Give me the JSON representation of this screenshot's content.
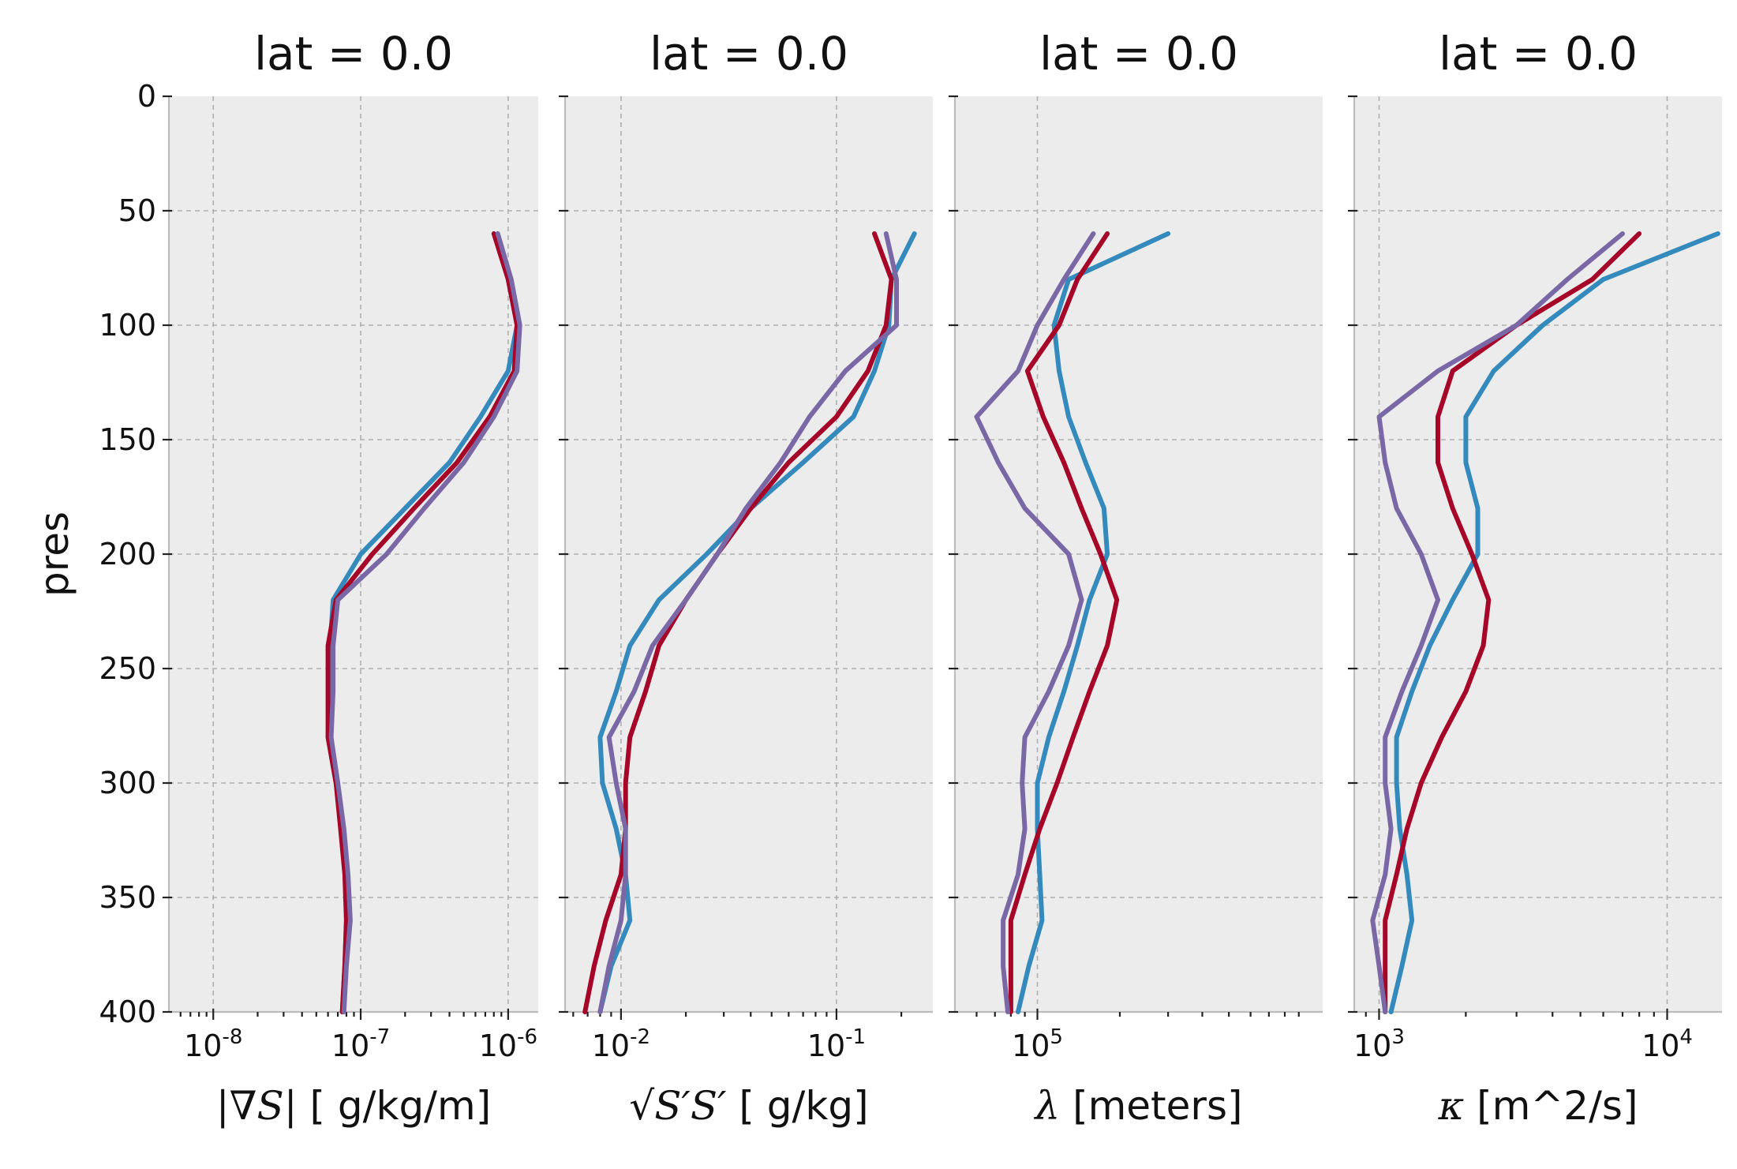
{
  "chart_data": [
    {
      "type": "line",
      "title": "lat = 0.0",
      "xlabel_math": "|∇S|",
      "xlabel_text": "[ g/kg/m]",
      "ylabel": "pres",
      "xscale": "log",
      "xlim": [
        5e-09,
        1.6e-06
      ],
      "ylim": [
        400,
        0
      ],
      "xticks": [
        {
          "base": "10",
          "exp": "-8",
          "value": 1e-08
        },
        {
          "base": "10",
          "exp": "-7",
          "value": 1e-07
        },
        {
          "base": "10",
          "exp": "-6",
          "value": 1e-06
        }
      ],
      "yticks": [
        "0",
        "50",
        "100",
        "150",
        "200",
        "250",
        "300",
        "350",
        "400"
      ],
      "grid": true,
      "series": [
        {
          "color": "#348abd",
          "points": [
            [
              8.5e-07,
              60
            ],
            [
              1e-06,
              80
            ],
            [
              1.15e-06,
              100
            ],
            [
              1e-06,
              120
            ],
            [
              6.5e-07,
              140
            ],
            [
              4e-07,
              160
            ],
            [
              2e-07,
              180
            ],
            [
              1e-07,
              200
            ],
            [
              6.5e-08,
              220
            ],
            [
              6.2e-08,
              240
            ],
            [
              6.2e-08,
              260
            ],
            [
              6e-08,
              280
            ],
            [
              6.8e-08,
              300
            ],
            [
              7.5e-08,
              320
            ],
            [
              8e-08,
              340
            ],
            [
              8e-08,
              360
            ],
            [
              7.8e-08,
              380
            ],
            [
              7.5e-08,
              400
            ]
          ]
        },
        {
          "color": "#a60628",
          "points": [
            [
              8e-07,
              60
            ],
            [
              1e-06,
              80
            ],
            [
              1.15e-06,
              100
            ],
            [
              1.1e-06,
              120
            ],
            [
              7.5e-07,
              140
            ],
            [
              4.5e-07,
              160
            ],
            [
              2.3e-07,
              180
            ],
            [
              1.2e-07,
              200
            ],
            [
              6.8e-08,
              220
            ],
            [
              6e-08,
              240
            ],
            [
              6e-08,
              260
            ],
            [
              6e-08,
              280
            ],
            [
              6.8e-08,
              300
            ],
            [
              7.3e-08,
              320
            ],
            [
              7.8e-08,
              340
            ],
            [
              8e-08,
              360
            ],
            [
              7.8e-08,
              380
            ],
            [
              7.5e-08,
              400
            ]
          ]
        },
        {
          "color": "#7a68a6",
          "points": [
            [
              8.5e-07,
              60
            ],
            [
              1.05e-06,
              80
            ],
            [
              1.2e-06,
              100
            ],
            [
              1.15e-06,
              120
            ],
            [
              8e-07,
              140
            ],
            [
              5e-07,
              160
            ],
            [
              2.7e-07,
              180
            ],
            [
              1.5e-07,
              200
            ],
            [
              7e-08,
              220
            ],
            [
              6.5e-08,
              240
            ],
            [
              6.5e-08,
              260
            ],
            [
              6.3e-08,
              280
            ],
            [
              7e-08,
              300
            ],
            [
              7.7e-08,
              320
            ],
            [
              8.2e-08,
              340
            ],
            [
              8.5e-08,
              360
            ],
            [
              8e-08,
              380
            ],
            [
              7.7e-08,
              400
            ]
          ]
        }
      ]
    },
    {
      "type": "line",
      "title": "lat = 0.0",
      "xlabel_math": "√S′S′",
      "xlabel_text": "[ g/kg]",
      "xscale": "log",
      "xlim": [
        0.0055,
        0.28
      ],
      "ylim": [
        400,
        0
      ],
      "xticks": [
        {
          "base": "10",
          "exp": "-2",
          "value": 0.01
        },
        {
          "base": "10",
          "exp": "-1",
          "value": 0.1
        }
      ],
      "grid": true,
      "series": [
        {
          "color": "#348abd",
          "points": [
            [
              0.23,
              60
            ],
            [
              0.18,
              80
            ],
            [
              0.175,
              100
            ],
            [
              0.15,
              120
            ],
            [
              0.12,
              140
            ],
            [
              0.07,
              160
            ],
            [
              0.04,
              180
            ],
            [
              0.025,
              200
            ],
            [
              0.015,
              220
            ],
            [
              0.011,
              240
            ],
            [
              0.0095,
              260
            ],
            [
              0.008,
              280
            ],
            [
              0.0082,
              300
            ],
            [
              0.0095,
              320
            ],
            [
              0.0105,
              340
            ],
            [
              0.011,
              360
            ],
            [
              0.009,
              380
            ],
            [
              0.008,
              400
            ]
          ]
        },
        {
          "color": "#a60628",
          "points": [
            [
              0.15,
              60
            ],
            [
              0.18,
              80
            ],
            [
              0.17,
              100
            ],
            [
              0.14,
              120
            ],
            [
              0.1,
              140
            ],
            [
              0.06,
              160
            ],
            [
              0.04,
              180
            ],
            [
              0.028,
              200
            ],
            [
              0.02,
              220
            ],
            [
              0.015,
              240
            ],
            [
              0.013,
              260
            ],
            [
              0.011,
              280
            ],
            [
              0.0105,
              300
            ],
            [
              0.0105,
              320
            ],
            [
              0.01,
              340
            ],
            [
              0.0085,
              360
            ],
            [
              0.0075,
              380
            ],
            [
              0.0068,
              400
            ]
          ]
        },
        {
          "color": "#7a68a6",
          "points": [
            [
              0.17,
              60
            ],
            [
              0.19,
              80
            ],
            [
              0.19,
              100
            ],
            [
              0.11,
              120
            ],
            [
              0.075,
              140
            ],
            [
              0.055,
              160
            ],
            [
              0.038,
              180
            ],
            [
              0.028,
              200
            ],
            [
              0.02,
              220
            ],
            [
              0.014,
              240
            ],
            [
              0.0115,
              260
            ],
            [
              0.0088,
              280
            ],
            [
              0.0095,
              300
            ],
            [
              0.0105,
              320
            ],
            [
              0.0105,
              340
            ],
            [
              0.01,
              360
            ],
            [
              0.0088,
              380
            ],
            [
              0.008,
              400
            ]
          ]
        }
      ]
    },
    {
      "type": "line",
      "title": "lat = 0.0",
      "xlabel_math": "λ",
      "xlabel_text": "[meters]",
      "xscale": "log",
      "xlim": [
        50000,
        1100000
      ],
      "ylim": [
        400,
        0
      ],
      "xticks": [
        {
          "base": "10",
          "exp": "5",
          "value": 100000
        }
      ],
      "grid": true,
      "series": [
        {
          "color": "#348abd",
          "points": [
            [
              300000,
              60
            ],
            [
              130000,
              80
            ],
            [
              115000,
              100
            ],
            [
              120000,
              120
            ],
            [
              130000,
              140
            ],
            [
              150000,
              160
            ],
            [
              175000,
              180
            ],
            [
              180000,
              200
            ],
            [
              155000,
              220
            ],
            [
              140000,
              240
            ],
            [
              125000,
              260
            ],
            [
              110000,
              280
            ],
            [
              100000,
              300
            ],
            [
              100000,
              320
            ],
            [
              102000,
              340
            ],
            [
              104000,
              360
            ],
            [
              93000,
              380
            ],
            [
              85000,
              400
            ]
          ]
        },
        {
          "color": "#a60628",
          "points": [
            [
              180000,
              60
            ],
            [
              140000,
              80
            ],
            [
              120000,
              100
            ],
            [
              92000,
              120
            ],
            [
              105000,
              140
            ],
            [
              125000,
              160
            ],
            [
              145000,
              180
            ],
            [
              170000,
              200
            ],
            [
              195000,
              220
            ],
            [
              180000,
              240
            ],
            [
              155000,
              260
            ],
            [
              135000,
              280
            ],
            [
              118000,
              300
            ],
            [
              102000,
              320
            ],
            [
              90000,
              340
            ],
            [
              80000,
              360
            ],
            [
              80000,
              380
            ],
            [
              80000,
              400
            ]
          ]
        },
        {
          "color": "#7a68a6",
          "points": [
            [
              160000,
              60
            ],
            [
              125000,
              80
            ],
            [
              100000,
              100
            ],
            [
              85000,
              120
            ],
            [
              60000,
              140
            ],
            [
              72000,
              160
            ],
            [
              90000,
              180
            ],
            [
              130000,
              200
            ],
            [
              145000,
              220
            ],
            [
              130000,
              240
            ],
            [
              110000,
              260
            ],
            [
              90000,
              280
            ],
            [
              88000,
              300
            ],
            [
              90000,
              320
            ],
            [
              85000,
              340
            ],
            [
              75000,
              360
            ],
            [
              75000,
              380
            ],
            [
              78000,
              400
            ]
          ]
        }
      ]
    },
    {
      "type": "line",
      "title": "lat = 0.0",
      "xlabel_math": "κ",
      "xlabel_text": "[m^2/s]",
      "xscale": "log",
      "xlim": [
        820,
        15500
      ],
      "ylim": [
        400,
        0
      ],
      "xticks": [
        {
          "base": "10",
          "exp": "3",
          "value": 1000
        },
        {
          "base": "10",
          "exp": "4",
          "value": 10000
        }
      ],
      "grid": true,
      "series": [
        {
          "color": "#348abd",
          "points": [
            [
              15000,
              60
            ],
            [
              6000,
              80
            ],
            [
              3700,
              100
            ],
            [
              2500,
              120
            ],
            [
              2000,
              140
            ],
            [
              2000,
              160
            ],
            [
              2200,
              180
            ],
            [
              2200,
              200
            ],
            [
              1800,
              220
            ],
            [
              1500,
              240
            ],
            [
              1300,
              260
            ],
            [
              1150,
              280
            ],
            [
              1150,
              300
            ],
            [
              1180,
              320
            ],
            [
              1250,
              340
            ],
            [
              1300,
              360
            ],
            [
              1200,
              380
            ],
            [
              1100,
              400
            ]
          ]
        },
        {
          "color": "#a60628",
          "points": [
            [
              8000,
              60
            ],
            [
              5500,
              80
            ],
            [
              3000,
              100
            ],
            [
              1800,
              120
            ],
            [
              1600,
              140
            ],
            [
              1600,
              160
            ],
            [
              1800,
              180
            ],
            [
              2100,
              200
            ],
            [
              2400,
              220
            ],
            [
              2300,
              240
            ],
            [
              2000,
              260
            ],
            [
              1650,
              280
            ],
            [
              1400,
              300
            ],
            [
              1250,
              320
            ],
            [
              1150,
              340
            ],
            [
              1050,
              360
            ],
            [
              1050,
              380
            ],
            [
              1050,
              400
            ]
          ]
        },
        {
          "color": "#7a68a6",
          "points": [
            [
              7000,
              60
            ],
            [
              4500,
              80
            ],
            [
              3000,
              100
            ],
            [
              1600,
              120
            ],
            [
              1000,
              140
            ],
            [
              1050,
              160
            ],
            [
              1150,
              180
            ],
            [
              1400,
              200
            ],
            [
              1600,
              220
            ],
            [
              1400,
              240
            ],
            [
              1200,
              260
            ],
            [
              1050,
              280
            ],
            [
              1050,
              300
            ],
            [
              1100,
              320
            ],
            [
              1050,
              340
            ],
            [
              950,
              360
            ],
            [
              1000,
              380
            ],
            [
              1050,
              400
            ]
          ]
        }
      ]
    }
  ]
}
